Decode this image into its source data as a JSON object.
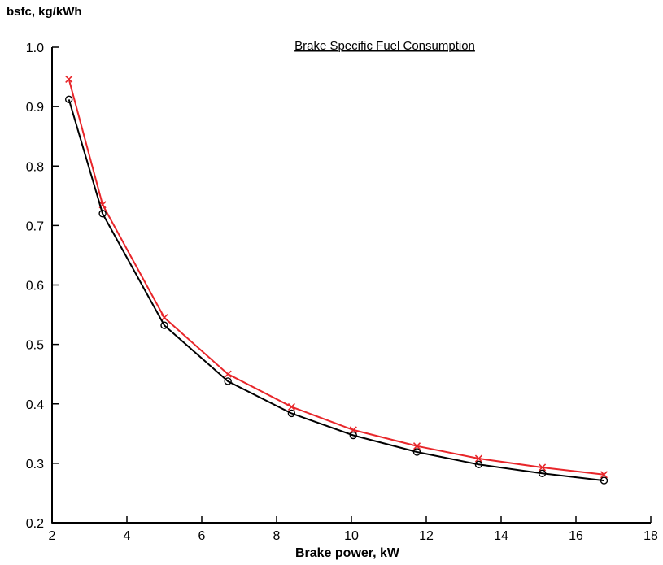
{
  "chart_data": {
    "type": "line",
    "title": "Brake Specific Fuel Consumption",
    "xlabel": "Brake power, kW",
    "ylabel": "bsfc, kg/kWh",
    "xlim": [
      2,
      18
    ],
    "ylim": [
      0.2,
      1.0
    ],
    "xticks": [
      "2",
      "4",
      "6",
      "8",
      "10",
      "12",
      "14",
      "16",
      "18"
    ],
    "yticks": [
      "0.2",
      "0.3",
      "0.4",
      "0.5",
      "0.6",
      "0.7",
      "0.8",
      "0.9",
      "1.0"
    ],
    "grid": false,
    "x": [
      2.45,
      3.35,
      5.0,
      6.7,
      8.4,
      10.05,
      11.75,
      13.4,
      15.1,
      16.75
    ],
    "series": [
      {
        "marker": "x",
        "color": "#e8262a",
        "values": [
          0.946,
          0.735,
          0.545,
          0.45,
          0.395,
          0.356,
          0.329,
          0.308,
          0.293,
          0.281
        ]
      },
      {
        "marker": "o",
        "color": "#000000",
        "values": [
          0.912,
          0.72,
          0.532,
          0.438,
          0.384,
          0.347,
          0.319,
          0.298,
          0.283,
          0.271
        ]
      }
    ]
  }
}
